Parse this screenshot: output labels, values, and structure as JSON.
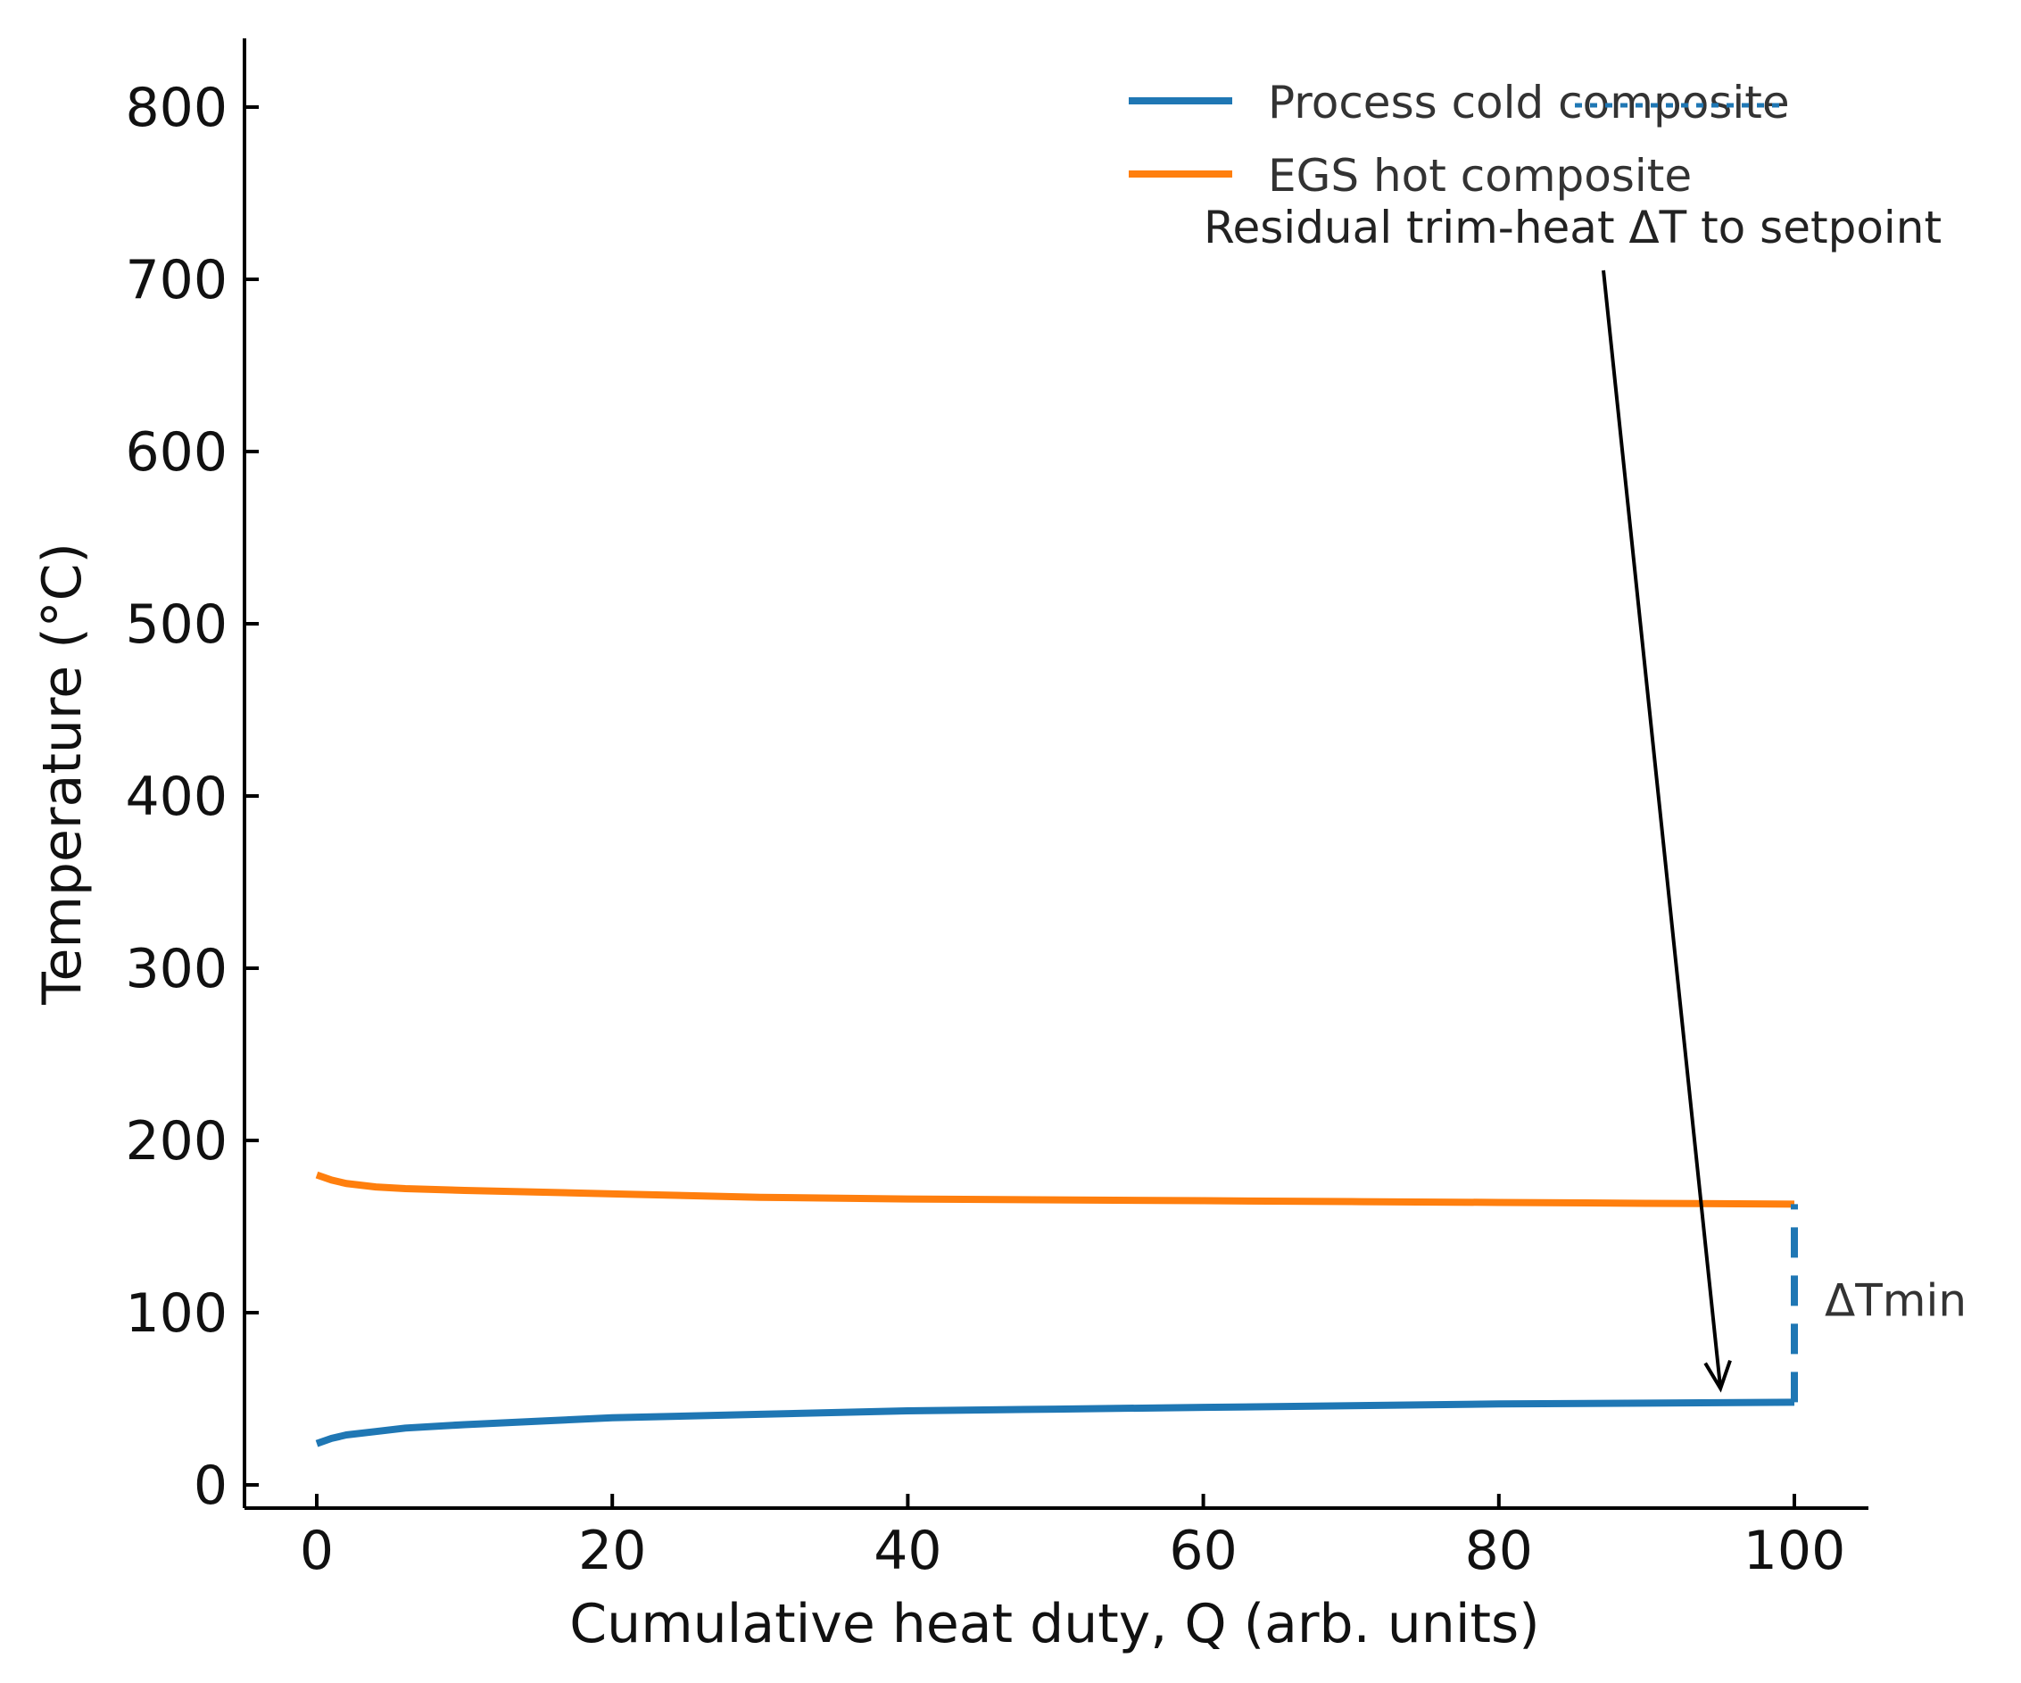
{
  "chart_data": {
    "type": "line",
    "title": "",
    "xlabel": "Cumulative heat duty, Q (arb. units)",
    "ylabel": "Temperature (°C)",
    "xlim": [
      -5,
      105
    ],
    "ylim": [
      -13,
      840
    ],
    "xticks": [
      "0",
      "20",
      "40",
      "60",
      "80",
      "100"
    ],
    "yticks": [
      "0",
      "100",
      "200",
      "300",
      "400",
      "500",
      "600",
      "700",
      "800"
    ],
    "grid": false,
    "legend_position": "top-right",
    "series": [
      {
        "name": "Process cold composite",
        "color": "#1f77b4",
        "x": [
          0,
          1,
          2,
          4,
          6,
          10,
          15,
          20,
          30,
          40,
          50,
          60,
          70,
          80,
          90,
          100
        ],
        "y": [
          24,
          27,
          29,
          31,
          33,
          35,
          37,
          39,
          41,
          43,
          44,
          45,
          46,
          47,
          47.5,
          48
        ]
      },
      {
        "name": "EGS hot composite",
        "color": "#ff7f0e",
        "x": [
          0,
          1,
          2,
          4,
          6,
          10,
          15,
          20,
          30,
          40,
          50,
          60,
          70,
          80,
          90,
          100
        ],
        "y": [
          180,
          177,
          175,
          173,
          172,
          171,
          170,
          169,
          167,
          166,
          165.5,
          165,
          164.5,
          164,
          163.5,
          163
        ]
      }
    ],
    "dtmin_marker": {
      "x": 100,
      "y_from": 48,
      "y_to": 163,
      "color": "#1f77b4",
      "label": "ΔTmin"
    },
    "annotation": {
      "text": "Residual trim-heat ΔT to setpoint",
      "arrow_to": {
        "x": 95,
        "y": 56
      }
    }
  }
}
